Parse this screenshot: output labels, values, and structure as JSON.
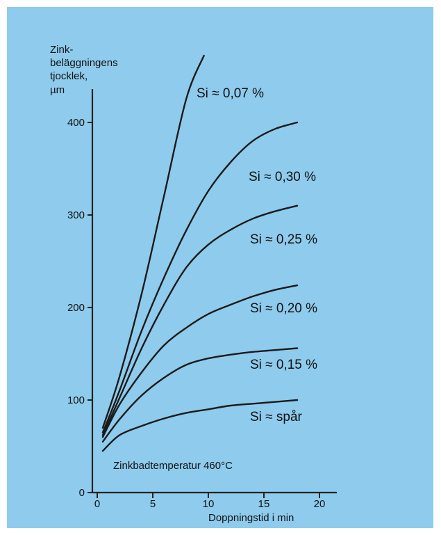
{
  "colors": {
    "background": "#8ecbed",
    "ink": "#1a1a1a"
  },
  "chart_data": {
    "type": "line",
    "title": "",
    "ylabel_lines": [
      "Zink-",
      "beläggningens",
      "tjocklek,",
      "µm"
    ],
    "xlabel": "Doppningstid i min",
    "annotation": "Zinkbadtemperatur 460°C",
    "xlim": [
      0,
      21
    ],
    "ylim": [
      0,
      450
    ],
    "xticks": [
      0,
      5,
      10,
      15,
      20
    ],
    "yticks": [
      0,
      100,
      200,
      300,
      400
    ],
    "grid": false,
    "legend": "none",
    "series": [
      {
        "name": "Si ≈ 0,07 %",
        "x": [
          0.5,
          2,
          4,
          6,
          8,
          9.6
        ],
        "y": [
          70,
          125,
          215,
          320,
          425,
          500
        ]
      },
      {
        "name": "Si ≈ 0,30 %",
        "x": [
          0.5,
          2,
          4,
          6,
          8,
          10,
          12,
          14,
          16,
          18
        ],
        "y": [
          65,
          110,
          175,
          232,
          283,
          326,
          357,
          380,
          393,
          400
        ]
      },
      {
        "name": "Si ≈ 0,25 %",
        "x": [
          0.5,
          2,
          4,
          6,
          8,
          10,
          12,
          14,
          16,
          18
        ],
        "y": [
          62,
          102,
          156,
          203,
          243,
          268,
          284,
          296,
          304,
          310
        ]
      },
      {
        "name": "Si ≈ 0,20 %",
        "x": [
          0.5,
          2,
          4,
          6,
          8,
          10,
          12,
          14,
          16,
          18
        ],
        "y": [
          60,
          95,
          130,
          159,
          178,
          193,
          203,
          212,
          219,
          224
        ]
      },
      {
        "name": "Si ≈ 0,15 %",
        "x": [
          0.5,
          2,
          4,
          6,
          8,
          10,
          12,
          14,
          16,
          18
        ],
        "y": [
          55,
          79,
          105,
          124,
          138,
          145,
          149,
          152,
          154,
          156
        ]
      },
      {
        "name": "Si ≈ spår",
        "x": [
          0.5,
          2,
          4,
          6,
          8,
          10,
          12,
          14,
          16,
          18
        ],
        "y": [
          45,
          62,
          72,
          80,
          86,
          90,
          94,
          96,
          98,
          100
        ]
      }
    ]
  }
}
